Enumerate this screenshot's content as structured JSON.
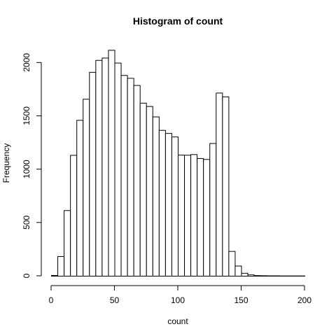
{
  "chart_data": {
    "type": "bar",
    "title": "Histogram of count",
    "xlabel": "count",
    "ylabel": "Frequency",
    "bin_width": 5,
    "bin_start": 0,
    "bin_counts": [
      6,
      184,
      615,
      1133,
      1461,
      1659,
      1911,
      2023,
      2045,
      2118,
      1998,
      1882,
      1855,
      1788,
      1622,
      1591,
      1493,
      1367,
      1338,
      1305,
      1135,
      1134,
      1140,
      1103,
      1094,
      1244,
      1717,
      1681,
      232,
      95,
      27,
      12,
      5,
      4,
      3,
      3,
      2,
      2,
      2,
      2
    ],
    "xlim": [
      0,
      200
    ],
    "ylim": [
      0,
      2120
    ],
    "x_ticks": [
      0,
      50,
      100,
      150,
      200
    ],
    "y_ticks": [
      0,
      500,
      1000,
      1500,
      2000
    ],
    "grid": false,
    "legend": "none"
  }
}
